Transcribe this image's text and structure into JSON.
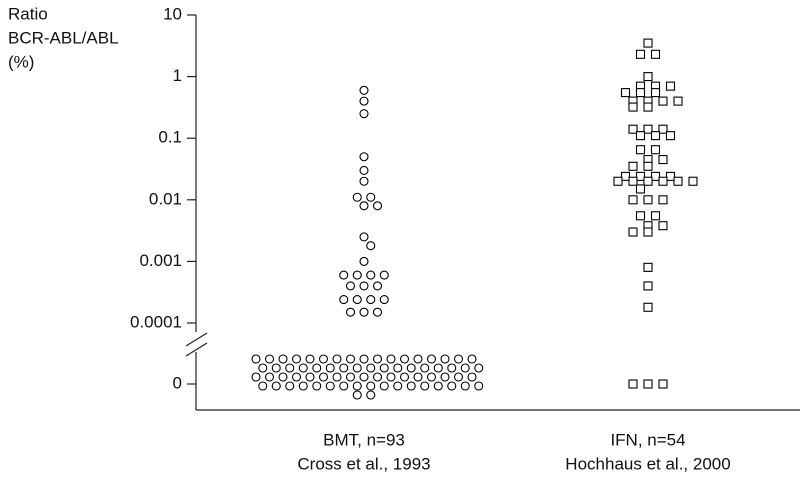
{
  "chart_data": {
    "type": "strip",
    "y_label": [
      "Ratio",
      "BCR-ABL/ABL",
      "(%)"
    ],
    "categories": [
      "BMT, n=93",
      "IFN, n=54"
    ],
    "category_notes": [
      "Cross et al., 1993",
      "Hochhaus et al., 2000"
    ],
    "log_scale": true,
    "axis_break": true,
    "ylim": [
      0.0001,
      10
    ],
    "yticks": [
      10,
      1,
      0.1,
      0.01,
      0.001,
      0.0001,
      0
    ],
    "series": [
      {
        "name": "BMT, n=93",
        "marker": "circle",
        "color": "#000000",
        "values": [
          0.6,
          0.4,
          0.25,
          0.05,
          0.03,
          0.02,
          0.011,
          0.011,
          0.008,
          0.008,
          0.0025,
          0.0018,
          0.001,
          0.0006,
          0.0006,
          0.0006,
          0.0006,
          0.0004,
          0.0004,
          0.0004,
          0.00024,
          0.00024,
          0.00024,
          0.00024,
          0.00015,
          0.00015,
          0.00015,
          0,
          0,
          0,
          0,
          0,
          0,
          0,
          0,
          0,
          0,
          0,
          0,
          0,
          0,
          0,
          0,
          0,
          0,
          0,
          0,
          0,
          0,
          0,
          0,
          0,
          0,
          0,
          0,
          0,
          0,
          0,
          0,
          0,
          0,
          0,
          0,
          0,
          0,
          0,
          0,
          0,
          0,
          0,
          0,
          0,
          0,
          0,
          0,
          0,
          0,
          0,
          0,
          0,
          0,
          0,
          0,
          0,
          0,
          0,
          0,
          0,
          0,
          0,
          0,
          0,
          0,
          0,
          0,
          0,
          0
        ]
      },
      {
        "name": "IFN, n=54",
        "marker": "square",
        "color": "#000000",
        "values": [
          3.5,
          2.3,
          2.3,
          1,
          0.7,
          0.7,
          0.7,
          0.55,
          0.55,
          0.55,
          0.4,
          0.4,
          0.4,
          0.4,
          0.32,
          0.32,
          0.14,
          0.14,
          0.14,
          0.11,
          0.11,
          0.11,
          0.065,
          0.065,
          0.045,
          0.045,
          0.035,
          0.035,
          0.024,
          0.024,
          0.024,
          0.024,
          0.02,
          0.02,
          0.02,
          0.02,
          0.02,
          0.02,
          0.015,
          0.01,
          0.01,
          0.01,
          0.0055,
          0.0055,
          0.0038,
          0.0038,
          0.003,
          0.003,
          0.0008,
          0.0004,
          0.00018,
          0,
          0,
          0
        ]
      }
    ]
  }
}
